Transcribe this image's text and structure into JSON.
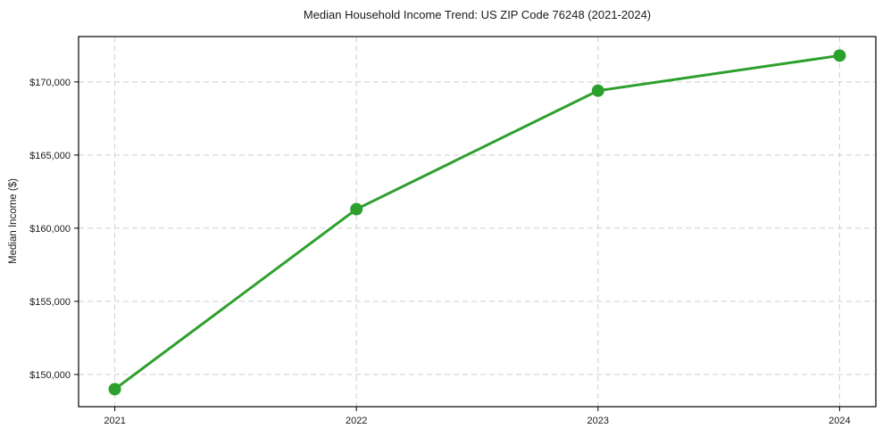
{
  "chart_data": {
    "type": "line",
    "title": "Median Household Income Trend: US ZIP Code 76248 (2021-2024)",
    "xlabel": "",
    "ylabel": "Median Income ($)",
    "x": [
      2021,
      2022,
      2023,
      2024
    ],
    "values": [
      149000,
      161300,
      169400,
      171800
    ],
    "series_name": "Median household income",
    "xticks": [
      2021,
      2022,
      2023,
      2024
    ],
    "xtick_labels": [
      "2021",
      "2022",
      "2023",
      "2024"
    ],
    "yticks": [
      150000,
      155000,
      160000,
      165000,
      170000
    ],
    "ytick_labels": [
      "$150,000",
      "$155,000",
      "$160,000",
      "$165,000",
      "$170,000"
    ],
    "xlim": [
      2020.85,
      2024.15
    ],
    "ylim": [
      147800,
      173100
    ],
    "grid": true,
    "grid_style": "dashed",
    "legend": "none",
    "colors": {
      "line": "#2ca02c",
      "marker": "#2ca02c",
      "grid": "#cfcfcf",
      "spine": "#000000",
      "text": "#1a1a1a",
      "background": "#ffffff"
    }
  }
}
